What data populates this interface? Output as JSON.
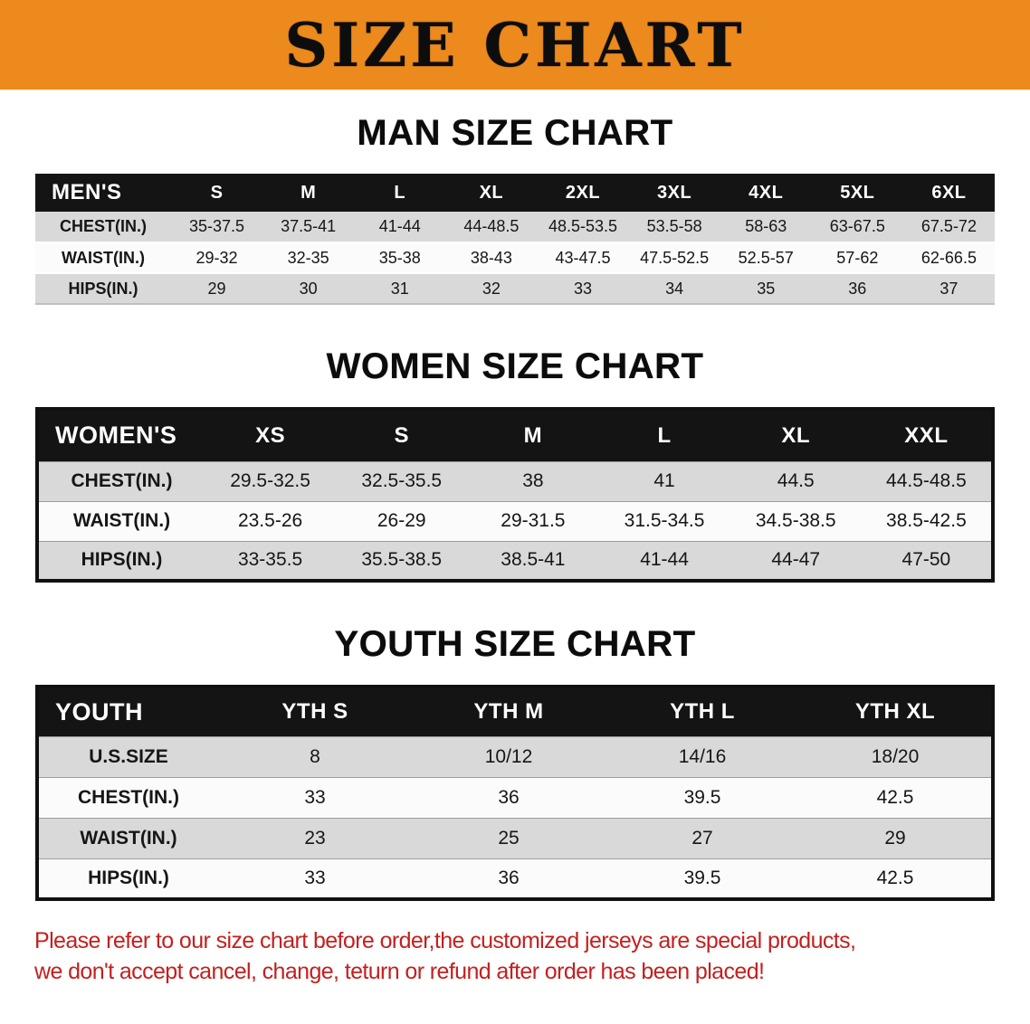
{
  "banner": {
    "title": "SIZE CHART"
  },
  "sections": [
    {
      "heading": "MAN SIZE CHART",
      "table": {
        "header": [
          "MEN'S",
          "S",
          "M",
          "L",
          "XL",
          "2XL",
          "3XL",
          "4XL",
          "5XL",
          "6XL"
        ],
        "rows": [
          [
            "CHEST(IN.)",
            "35-37.5",
            "37.5-41",
            "41-44",
            "44-48.5",
            "48.5-53.5",
            "53.5-58",
            "58-63",
            "63-67.5",
            "67.5-72"
          ],
          [
            "WAIST(IN.)",
            "29-32",
            "32-35",
            "35-38",
            "38-43",
            "43-47.5",
            "47.5-52.5",
            "52.5-57",
            "57-62",
            "62-66.5"
          ],
          [
            "HIPS(IN.)",
            "29",
            "30",
            "31",
            "32",
            "33",
            "34",
            "35",
            "36",
            "37"
          ]
        ]
      }
    },
    {
      "heading": "WOMEN SIZE CHART",
      "table": {
        "header": [
          "WOMEN'S",
          "XS",
          "S",
          "M",
          "L",
          "XL",
          "XXL"
        ],
        "rows": [
          [
            "CHEST(IN.)",
            "29.5-32.5",
            "32.5-35.5",
            "38",
            "41",
            "44.5",
            "44.5-48.5"
          ],
          [
            "WAIST(IN.)",
            "23.5-26",
            "26-29",
            "29-31.5",
            "31.5-34.5",
            "34.5-38.5",
            "38.5-42.5"
          ],
          [
            "HIPS(IN.)",
            "33-35.5",
            "35.5-38.5",
            "38.5-41",
            "41-44",
            "44-47",
            "47-50"
          ]
        ]
      }
    },
    {
      "heading": "YOUTH SIZE CHART",
      "table": {
        "header": [
          "YOUTH",
          "YTH S",
          "YTH M",
          "YTH L",
          "YTH XL"
        ],
        "rows": [
          [
            "U.S.SIZE",
            "8",
            "10/12",
            "14/16",
            "18/20"
          ],
          [
            "CHEST(IN.)",
            "33",
            "36",
            "39.5",
            "42.5"
          ],
          [
            "WAIST(IN.)",
            "23",
            "25",
            "27",
            "29"
          ],
          [
            "HIPS(IN.)",
            "33",
            "36",
            "39.5",
            "42.5"
          ]
        ]
      }
    }
  ],
  "disclaimer": {
    "line1": "Please refer to our size chart before order,the customized jerseys are special products,",
    "line2": "we don't accept cancel, change, teturn or refund after order has been placed!"
  },
  "colors": {
    "banner_orange": "#ec8a1d",
    "table_header_black": "#141414",
    "row_gray": "#d9d9d9",
    "row_white": "#fbfbfb",
    "disclaimer_red": "#c3201f"
  }
}
